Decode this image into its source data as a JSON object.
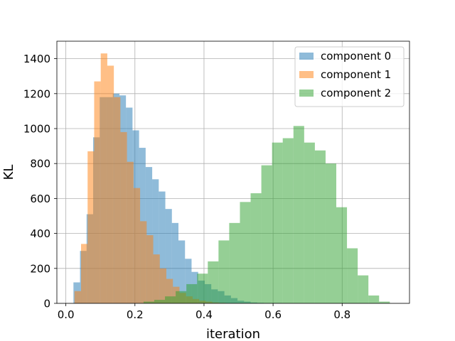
{
  "chart_data": {
    "type": "bar",
    "subtype": "overlapping histogram",
    "xlabel": "iteration",
    "ylabel": "KL",
    "xlim": [
      -0.026,
      0.995
    ],
    "ylim": [
      0,
      1500
    ],
    "xticks": [
      0.0,
      0.2,
      0.4,
      0.6,
      0.8
    ],
    "xtick_labels": [
      "0.0",
      "0.2",
      "0.4",
      "0.6",
      "0.8"
    ],
    "yticks": [
      0,
      200,
      400,
      600,
      800,
      1000,
      1200,
      1400
    ],
    "ytick_labels": [
      "0",
      "200",
      "400",
      "600",
      "800",
      "1000",
      "1200",
      "1400"
    ],
    "grid": true,
    "legend_position": "top-right",
    "series": [
      {
        "name": "component 0",
        "color": "#1f77b4",
        "alpha": 0.5,
        "bins": [
          [
            0.022,
            0.041,
            120
          ],
          [
            0.041,
            0.06,
            300
          ],
          [
            0.06,
            0.079,
            510
          ],
          [
            0.079,
            0.098,
            950
          ],
          [
            0.098,
            0.117,
            1180
          ],
          [
            0.117,
            0.136,
            1180
          ],
          [
            0.136,
            0.155,
            1200
          ],
          [
            0.155,
            0.174,
            1190
          ],
          [
            0.174,
            0.193,
            1120
          ],
          [
            0.193,
            0.212,
            990
          ],
          [
            0.212,
            0.231,
            890
          ],
          [
            0.231,
            0.25,
            780
          ],
          [
            0.25,
            0.269,
            710
          ],
          [
            0.269,
            0.288,
            640
          ],
          [
            0.288,
            0.307,
            540
          ],
          [
            0.307,
            0.326,
            460
          ],
          [
            0.326,
            0.345,
            360
          ],
          [
            0.345,
            0.364,
            255
          ],
          [
            0.364,
            0.383,
            180
          ],
          [
            0.383,
            0.402,
            130
          ],
          [
            0.402,
            0.421,
            110
          ],
          [
            0.421,
            0.44,
            80
          ],
          [
            0.44,
            0.459,
            70
          ],
          [
            0.459,
            0.478,
            45
          ],
          [
            0.478,
            0.497,
            30
          ],
          [
            0.497,
            0.516,
            15
          ],
          [
            0.516,
            0.535,
            10
          ],
          [
            0.535,
            0.554,
            5
          ],
          [
            0.554,
            0.573,
            3
          ],
          [
            0.573,
            0.592,
            2
          ],
          [
            0.592,
            0.63,
            1
          ]
        ]
      },
      {
        "name": "component 1",
        "color": "#ff7f0e",
        "alpha": 0.5,
        "bins": [
          [
            0.025,
            0.044,
            70
          ],
          [
            0.044,
            0.063,
            340
          ],
          [
            0.063,
            0.082,
            870
          ],
          [
            0.082,
            0.101,
            1270
          ],
          [
            0.101,
            0.12,
            1430
          ],
          [
            0.12,
            0.139,
            1360
          ],
          [
            0.139,
            0.158,
            1180
          ],
          [
            0.158,
            0.177,
            980
          ],
          [
            0.177,
            0.196,
            810
          ],
          [
            0.196,
            0.215,
            660
          ],
          [
            0.215,
            0.234,
            470
          ],
          [
            0.234,
            0.253,
            390
          ],
          [
            0.253,
            0.272,
            280
          ],
          [
            0.272,
            0.291,
            200
          ],
          [
            0.291,
            0.31,
            140
          ],
          [
            0.31,
            0.329,
            95
          ],
          [
            0.329,
            0.348,
            60
          ],
          [
            0.348,
            0.367,
            40
          ],
          [
            0.367,
            0.386,
            25
          ],
          [
            0.386,
            0.405,
            15
          ],
          [
            0.405,
            0.424,
            10
          ],
          [
            0.424,
            0.443,
            5
          ],
          [
            0.443,
            0.462,
            3
          ]
        ]
      },
      {
        "name": "component 2",
        "color": "#2ca02c",
        "alpha": 0.5,
        "bins": [
          [
            0.225,
            0.256,
            10
          ],
          [
            0.256,
            0.287,
            20
          ],
          [
            0.287,
            0.318,
            40
          ],
          [
            0.318,
            0.349,
            70
          ],
          [
            0.349,
            0.38,
            110
          ],
          [
            0.38,
            0.411,
            170
          ],
          [
            0.411,
            0.442,
            240
          ],
          [
            0.442,
            0.473,
            360
          ],
          [
            0.473,
            0.504,
            460
          ],
          [
            0.504,
            0.535,
            580
          ],
          [
            0.535,
            0.566,
            630
          ],
          [
            0.566,
            0.597,
            790
          ],
          [
            0.597,
            0.628,
            920
          ],
          [
            0.628,
            0.659,
            945
          ],
          [
            0.659,
            0.69,
            1015
          ],
          [
            0.69,
            0.721,
            920
          ],
          [
            0.721,
            0.752,
            875
          ],
          [
            0.752,
            0.783,
            800
          ],
          [
            0.783,
            0.814,
            550
          ],
          [
            0.814,
            0.845,
            315
          ],
          [
            0.845,
            0.876,
            160
          ],
          [
            0.876,
            0.907,
            45
          ],
          [
            0.907,
            0.938,
            10
          ]
        ]
      }
    ]
  }
}
